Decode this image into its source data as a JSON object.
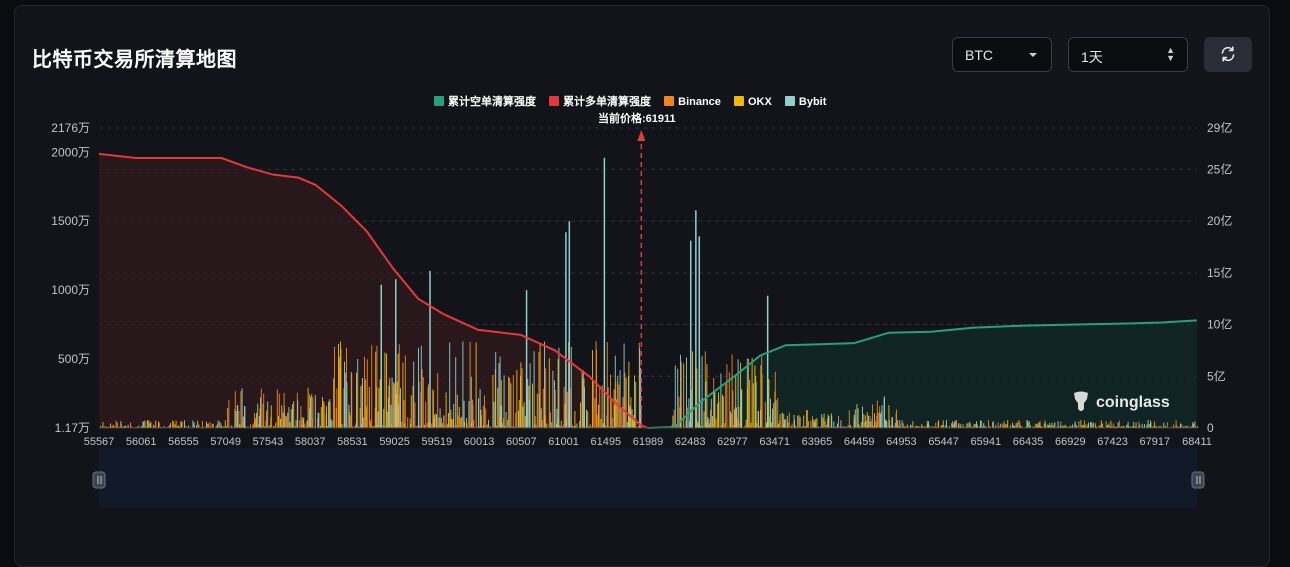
{
  "header": {
    "title": "比特币交易所清算地图",
    "symbol_select": "BTC",
    "period_select": "1天",
    "refresh_icon": "refresh-icon"
  },
  "legend": [
    {
      "label": "累计空单清算强度",
      "color": "#26a17b"
    },
    {
      "label": "累计多单清算强度",
      "color": "#e5383b"
    },
    {
      "label": "Binance",
      "color": "#f0861d"
    },
    {
      "label": "OKX",
      "color": "#f0b90b"
    },
    {
      "label": "Bybit",
      "color": "#8fcfcc"
    }
  ],
  "current_price_label": "当前价格:61911",
  "watermark": "coinglass",
  "chart_data": {
    "type": "bar",
    "current_price": 61911,
    "x_ticks": [
      55567,
      56061,
      56555,
      57049,
      57543,
      58037,
      58531,
      59025,
      59519,
      60013,
      60507,
      61001,
      61495,
      61989,
      62483,
      62977,
      63471,
      63965,
      64459,
      64953,
      65447,
      65941,
      66435,
      66929,
      67423,
      67917,
      68411
    ],
    "xlim": [
      55567,
      68411
    ],
    "y_left": {
      "ticks": [
        "1.17万",
        "500万",
        "1000万",
        "1500万",
        "2000万",
        "2176万"
      ],
      "values": [
        1.17,
        500,
        1000,
        1500,
        2000,
        2176
      ],
      "range": [
        1.17,
        2176
      ]
    },
    "y_right": {
      "ticks": [
        "0",
        "5亿",
        "10亿",
        "15亿",
        "20亿",
        "25亿",
        "29亿"
      ],
      "values": [
        0,
        5,
        10,
        15,
        20,
        25,
        29
      ],
      "range": [
        0,
        29
      ]
    },
    "cumulative_long": [
      [
        55567,
        26.5
      ],
      [
        56000,
        26.1
      ],
      [
        56500,
        26.1
      ],
      [
        57000,
        26.1
      ],
      [
        57300,
        25.2
      ],
      [
        57600,
        24.5
      ],
      [
        57900,
        24.2
      ],
      [
        58100,
        23.5
      ],
      [
        58400,
        21.5
      ],
      [
        58700,
        19.0
      ],
      [
        59000,
        15.5
      ],
      [
        59300,
        12.5
      ],
      [
        59600,
        11.0
      ],
      [
        60000,
        9.5
      ],
      [
        60500,
        9.0
      ],
      [
        60900,
        7.5
      ],
      [
        61300,
        5.0
      ],
      [
        61600,
        2.5
      ],
      [
        61900,
        0.3
      ],
      [
        61989,
        0
      ]
    ],
    "cumulative_short": [
      [
        61989,
        0
      ],
      [
        62300,
        0.1
      ],
      [
        62600,
        2.5
      ],
      [
        63000,
        5.0
      ],
      [
        63300,
        7.0
      ],
      [
        63600,
        8.0
      ],
      [
        64000,
        8.1
      ],
      [
        64400,
        8.2
      ],
      [
        64800,
        9.2
      ],
      [
        65300,
        9.3
      ],
      [
        65800,
        9.7
      ],
      [
        66400,
        9.9
      ],
      [
        67000,
        10.0
      ],
      [
        67600,
        10.1
      ],
      [
        68000,
        10.2
      ],
      [
        68411,
        10.4
      ]
    ],
    "bar_peaks": [
      {
        "x": 61470,
        "exchange": "Bybit",
        "value": 1960
      },
      {
        "x": 61060,
        "exchange": "Bybit",
        "value": 1500
      },
      {
        "x": 62540,
        "exchange": "Bybit",
        "value": 1580
      },
      {
        "x": 61020,
        "exchange": "Bybit",
        "value": 1420
      },
      {
        "x": 62580,
        "exchange": "Bybit",
        "value": 1390
      },
      {
        "x": 62480,
        "exchange": "Bybit",
        "value": 1360
      },
      {
        "x": 59430,
        "exchange": "Bybit",
        "value": 1140
      },
      {
        "x": 60560,
        "exchange": "Bybit",
        "value": 1000
      },
      {
        "x": 63380,
        "exchange": "Bybit",
        "value": 960
      },
      {
        "x": 58860,
        "exchange": "Bybit",
        "value": 1040
      },
      {
        "x": 59030,
        "exchange": "Bybit",
        "value": 1080
      }
    ]
  }
}
